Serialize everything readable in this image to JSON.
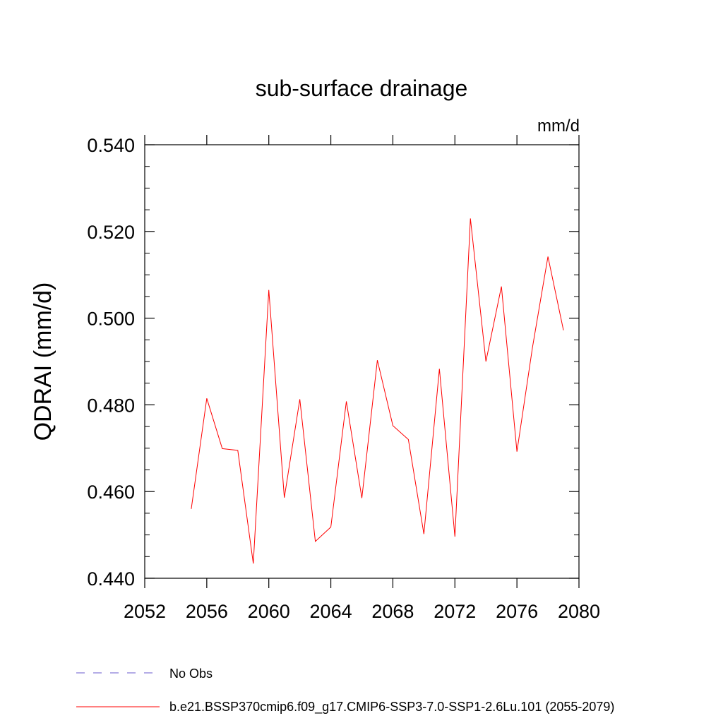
{
  "chart_data": {
    "type": "line",
    "title": "sub-surface drainage",
    "units_label": "mm/d",
    "ylabel": "QDRAI  (mm/d)",
    "xlabel": "",
    "xlim": [
      2052,
      2080
    ],
    "ylim": [
      0.44,
      0.54
    ],
    "x_ticks": [
      2052,
      2056,
      2060,
      2064,
      2068,
      2072,
      2076,
      2080
    ],
    "x_tick_labels": [
      "2052",
      "2056",
      "2060",
      "2064",
      "2068",
      "2072",
      "2076",
      "2080"
    ],
    "y_ticks": [
      0.44,
      0.46,
      0.48,
      0.5,
      0.52,
      0.54
    ],
    "y_tick_labels": [
      "0.440",
      "0.460",
      "0.480",
      "0.500",
      "0.520",
      "0.540"
    ],
    "grid": false,
    "legend_position": "bottom",
    "series": [
      {
        "name": "b.e21.BSSP370cmip6.f09_g17.CMIP6-SSP3-7.0-SSP1-2.6Lu.101 (2055-2079)",
        "color": "#ff0000",
        "x": [
          2055,
          2056,
          2057,
          2058,
          2059,
          2060,
          2061,
          2062,
          2063,
          2064,
          2065,
          2066,
          2067,
          2068,
          2069,
          2070,
          2071,
          2072,
          2073,
          2074,
          2075,
          2076,
          2077,
          2078,
          2079
        ],
        "values": [
          0.456,
          0.4815,
          0.4699,
          0.4695,
          0.4434,
          0.5065,
          0.4586,
          0.4813,
          0.4485,
          0.4518,
          0.4808,
          0.4585,
          0.4903,
          0.4752,
          0.472,
          0.4502,
          0.4883,
          0.4496,
          0.523,
          0.49,
          0.5073,
          0.4692,
          0.4932,
          0.5142,
          0.4972
        ]
      }
    ],
    "legend": [
      {
        "label": "No Obs",
        "color": "#6a5acd",
        "dashed": true
      },
      {
        "label": "b.e21.BSSP370cmip6.f09_g17.CMIP6-SSP3-7.0-SSP1-2.6Lu.101 (2055-2079)",
        "color": "#ff0000",
        "dashed": false
      }
    ]
  }
}
